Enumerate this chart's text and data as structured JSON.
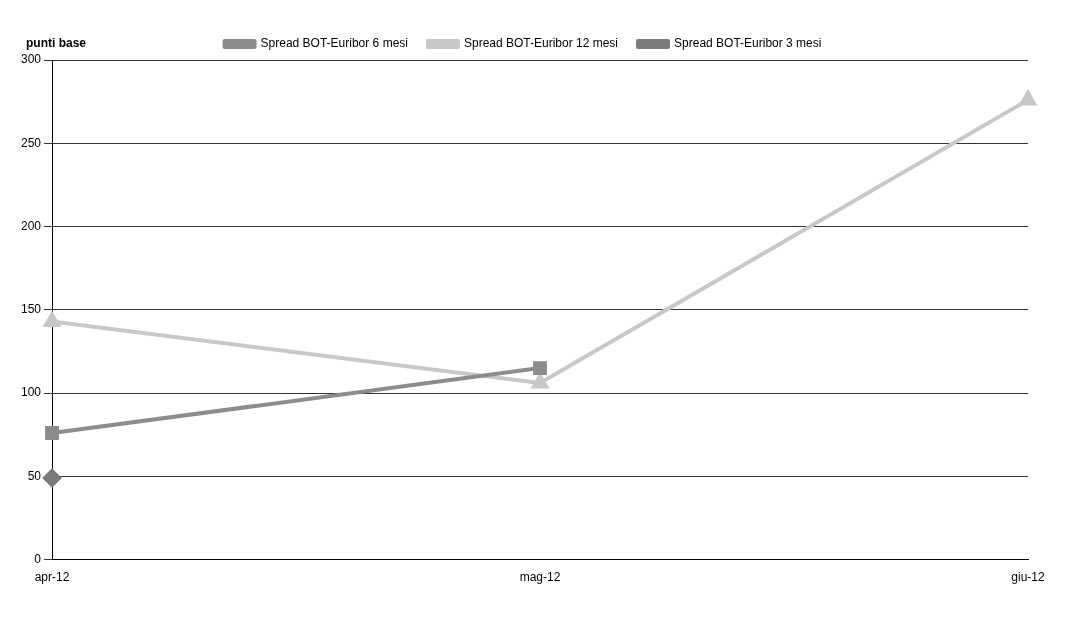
{
  "chart_data": {
    "type": "line",
    "ylabel": "punti base",
    "categories": [
      "apr-12",
      "mag-12",
      "giu-12"
    ],
    "series": [
      {
        "name": "Spread BOT-Euribor 6 mesi",
        "color": "#8c8c8c",
        "marker": "square",
        "values": [
          76,
          115,
          null
        ]
      },
      {
        "name": "Spread BOT-Euribor 12 mesi",
        "color": "#c8c8c8",
        "marker": "triangle",
        "values": [
          143,
          106,
          276
        ]
      },
      {
        "name": "Spread BOT-Euribor 3 mesi",
        "color": "#7a7a7a",
        "marker": "diamond",
        "values": [
          49,
          null,
          null
        ]
      }
    ],
    "ylim": [
      0,
      300
    ],
    "yticks": [
      0,
      50,
      100,
      150,
      200,
      250,
      300
    ],
    "grid": "y",
    "legend": "top",
    "line_style": "solid"
  }
}
